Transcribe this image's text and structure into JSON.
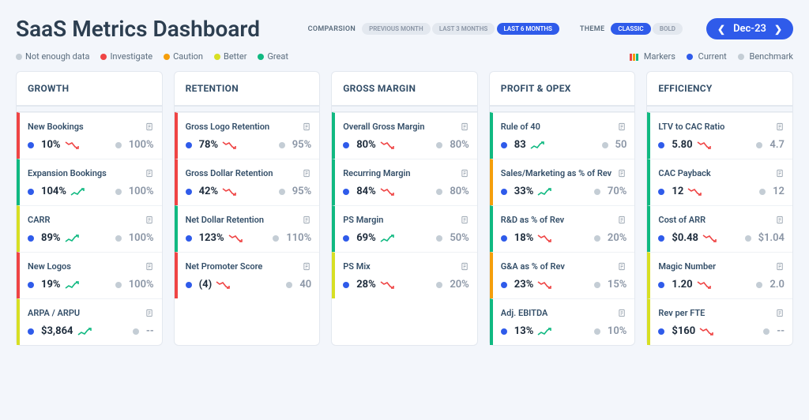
{
  "title": "SaaS Metrics Dashboard",
  "controls": {
    "comparison_label": "COMPARSION",
    "comparison_options": [
      {
        "label": "PREVIOUS MONTH",
        "active": false
      },
      {
        "label": "LAST 3 MONTHS",
        "active": false
      },
      {
        "label": "LAST 6 MONTHS",
        "active": true
      }
    ],
    "theme_label": "THEME",
    "theme_options": [
      {
        "label": "CLASSIC",
        "active": true
      },
      {
        "label": "BOLD",
        "active": false
      }
    ],
    "date": "Dec-23"
  },
  "status_legend": [
    {
      "color": "#c4cdd5",
      "label": "Not enough data"
    },
    {
      "color": "#ef4444",
      "label": "Investigate"
    },
    {
      "color": "#f59e0b",
      "label": "Caution"
    },
    {
      "color": "#d7df23",
      "label": "Better"
    },
    {
      "color": "#10b981",
      "label": "Great"
    }
  ],
  "series_legend": {
    "markers": "Markers",
    "markers_colors": [
      "#ef4444",
      "#f59e0b",
      "#10b981"
    ],
    "current": {
      "label": "Current",
      "color": "#2f5bea"
    },
    "benchmark": {
      "label": "Benchmark",
      "color": "#c4cdd5"
    }
  },
  "status_colors": {
    "red": "#ef4444",
    "orange": "#f59e0b",
    "yellow": "#d7df23",
    "green": "#10b981",
    "gray": "#c4cdd5"
  },
  "trend_colors": {
    "up": "#10b981",
    "down": "#ef4444"
  },
  "columns": [
    {
      "title": "GROWTH",
      "cards": [
        {
          "title": "New Bookings",
          "status": "red",
          "current": "10%",
          "trend": "down",
          "benchmark": "100%"
        },
        {
          "title": "Expansion Bookings",
          "status": "green",
          "current": "104%",
          "trend": "up",
          "benchmark": "100%"
        },
        {
          "title": "CARR",
          "status": "yellow",
          "current": "89%",
          "trend": "up",
          "benchmark": "100%"
        },
        {
          "title": "New Logos",
          "status": "red",
          "current": "19%",
          "trend": "up",
          "benchmark": "100%"
        },
        {
          "title": "ARPA / ARPU",
          "status": "yellow",
          "current": "$3,864",
          "trend": "up",
          "benchmark": "--"
        }
      ]
    },
    {
      "title": "RETENTION",
      "cards": [
        {
          "title": "Gross Logo Retention",
          "status": "red",
          "current": "78%",
          "trend": "down",
          "benchmark": "95%"
        },
        {
          "title": "Gross Dollar Retention",
          "status": "red",
          "current": "42%",
          "trend": "down",
          "benchmark": "95%"
        },
        {
          "title": "Net Dollar Retention",
          "status": "green",
          "current": "123%",
          "trend": "down",
          "benchmark": "110%"
        },
        {
          "title": "Net Promoter Score",
          "status": "red",
          "current": "(4)",
          "trend": "down",
          "benchmark": "40"
        }
      ]
    },
    {
      "title": "GROSS MARGIN",
      "cards": [
        {
          "title": "Overall Gross Margin",
          "status": "green",
          "current": "80%",
          "trend": "down",
          "benchmark": "80%"
        },
        {
          "title": "Recurring Margin",
          "status": "green",
          "current": "84%",
          "trend": "down",
          "benchmark": "80%"
        },
        {
          "title": "PS Margin",
          "status": "green",
          "current": "69%",
          "trend": "up",
          "benchmark": "50%"
        },
        {
          "title": "PS Mix",
          "status": "yellow",
          "current": "28%",
          "trend": "down",
          "benchmark": "20%"
        }
      ]
    },
    {
      "title": "PROFIT & OPEX",
      "cards": [
        {
          "title": "Rule of 40",
          "status": "green",
          "current": "83",
          "trend": "up",
          "benchmark": "50"
        },
        {
          "title": "Sales/Marketing as % of Rev",
          "status": "orange",
          "current": "33%",
          "trend": "up",
          "benchmark": "70%"
        },
        {
          "title": "R&D as % of Rev",
          "status": "green",
          "current": "18%",
          "trend": "down",
          "benchmark": "20%"
        },
        {
          "title": "G&A as % of Rev",
          "status": "orange",
          "current": "23%",
          "trend": "down",
          "benchmark": "15%"
        },
        {
          "title": "Adj. EBITDA",
          "status": "green",
          "current": "13%",
          "trend": "up",
          "benchmark": "10%"
        }
      ]
    },
    {
      "title": "EFFICIENCY",
      "cards": [
        {
          "title": "LTV to CAC Ratio",
          "status": "green",
          "current": "5.80",
          "trend": "down",
          "benchmark": "4.7"
        },
        {
          "title": "CAC Payback",
          "status": "green",
          "current": "12",
          "trend": "down",
          "benchmark": "12"
        },
        {
          "title": "Cost of ARR",
          "status": "green",
          "current": "$0.48",
          "trend": "down",
          "benchmark": "$1.04"
        },
        {
          "title": "Magic Number",
          "status": "yellow",
          "current": "1.20",
          "trend": "down",
          "benchmark": "2.0"
        },
        {
          "title": "Rev per FTE",
          "status": "yellow",
          "current": "$160",
          "trend": "down",
          "benchmark": "--"
        }
      ]
    }
  ]
}
